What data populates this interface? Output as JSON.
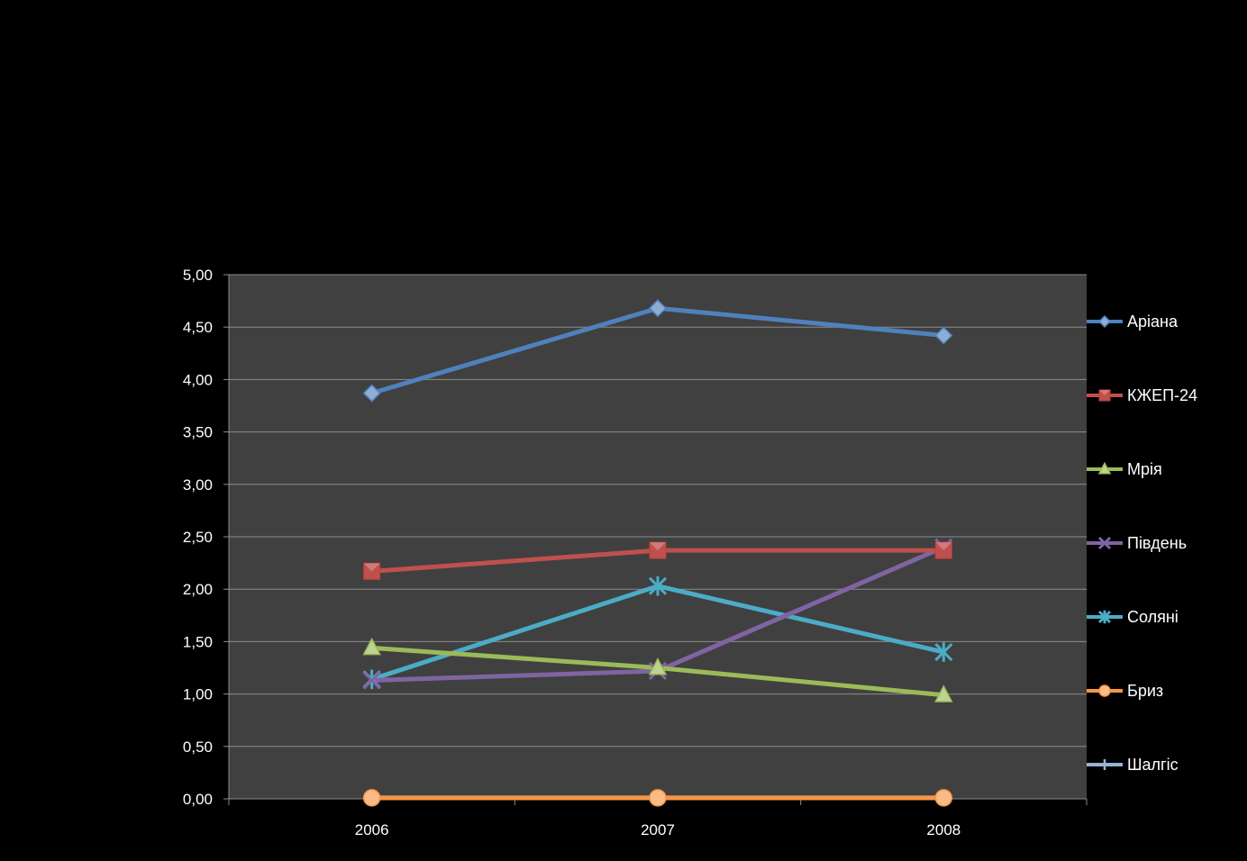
{
  "chart_data": {
    "type": "line",
    "title": "",
    "xlabel": "",
    "ylabel": "",
    "categories": [
      "2006",
      "2007",
      "2008"
    ],
    "ylim": [
      0,
      5
    ],
    "ytick_step": 0.5,
    "ytick_labels": [
      "0,00",
      "0,50",
      "1,00",
      "1,50",
      "2,00",
      "2,50",
      "3,00",
      "3,50",
      "4,00",
      "4,50",
      "5,00"
    ],
    "grid": true,
    "legend_position": "right",
    "plot_background": "#404040",
    "series": [
      {
        "name": "Аріана",
        "values": [
          3.87,
          4.68,
          4.42
        ],
        "color": "#4F81BD",
        "marker": "diamond"
      },
      {
        "name": "КЖЕП-24",
        "values": [
          2.17,
          2.37,
          2.37
        ],
        "color": "#C0504D",
        "marker": "square"
      },
      {
        "name": "Мрія",
        "values": [
          1.44,
          1.25,
          0.99
        ],
        "color": "#9BBB59",
        "marker": "triangle"
      },
      {
        "name": "Південь",
        "values": [
          1.13,
          1.22,
          2.4
        ],
        "color": "#8064A2",
        "marker": "x"
      },
      {
        "name": "Соляні",
        "values": [
          1.14,
          2.03,
          1.4
        ],
        "color": "#4BACC6",
        "marker": "star"
      },
      {
        "name": "Бриз",
        "values": [
          0.01,
          0.01,
          0.01
        ],
        "color": "#F79646",
        "marker": "circle"
      },
      {
        "name": "Шалгіс",
        "values": [
          0.01,
          0.01,
          0.01
        ],
        "color": "#95B3D7",
        "marker": "plus"
      }
    ]
  }
}
